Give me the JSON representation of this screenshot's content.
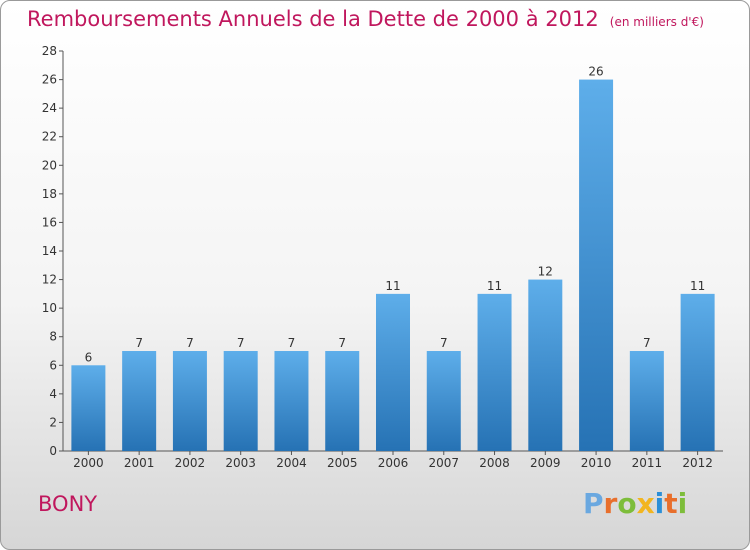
{
  "header": {
    "title": "Remboursements Annuels de la Dette de 2000 à 2012",
    "subtitle": "(en milliers d'€)"
  },
  "footer": {
    "town": "BONY",
    "brand": "Proxiti"
  },
  "colors": {
    "title": "#c0175d",
    "bar_light": "#5eaeea",
    "bar_dark": "#2672b4"
  },
  "chart_data": {
    "type": "bar",
    "title": "Remboursements Annuels de la Dette de 2000 à 2012",
    "subtitle": "(en milliers d'€)",
    "categories": [
      "2000",
      "2001",
      "2002",
      "2003",
      "2004",
      "2005",
      "2006",
      "2007",
      "2008",
      "2009",
      "2010",
      "2011",
      "2012"
    ],
    "values": [
      6,
      7,
      7,
      7,
      7,
      7,
      11,
      7,
      11,
      12,
      26,
      7,
      11
    ],
    "ylim": [
      0,
      28
    ],
    "yticks": [
      0,
      2,
      4,
      6,
      8,
      10,
      12,
      14,
      16,
      18,
      20,
      22,
      24,
      26,
      28
    ],
    "grid": false,
    "data_labels": true
  }
}
